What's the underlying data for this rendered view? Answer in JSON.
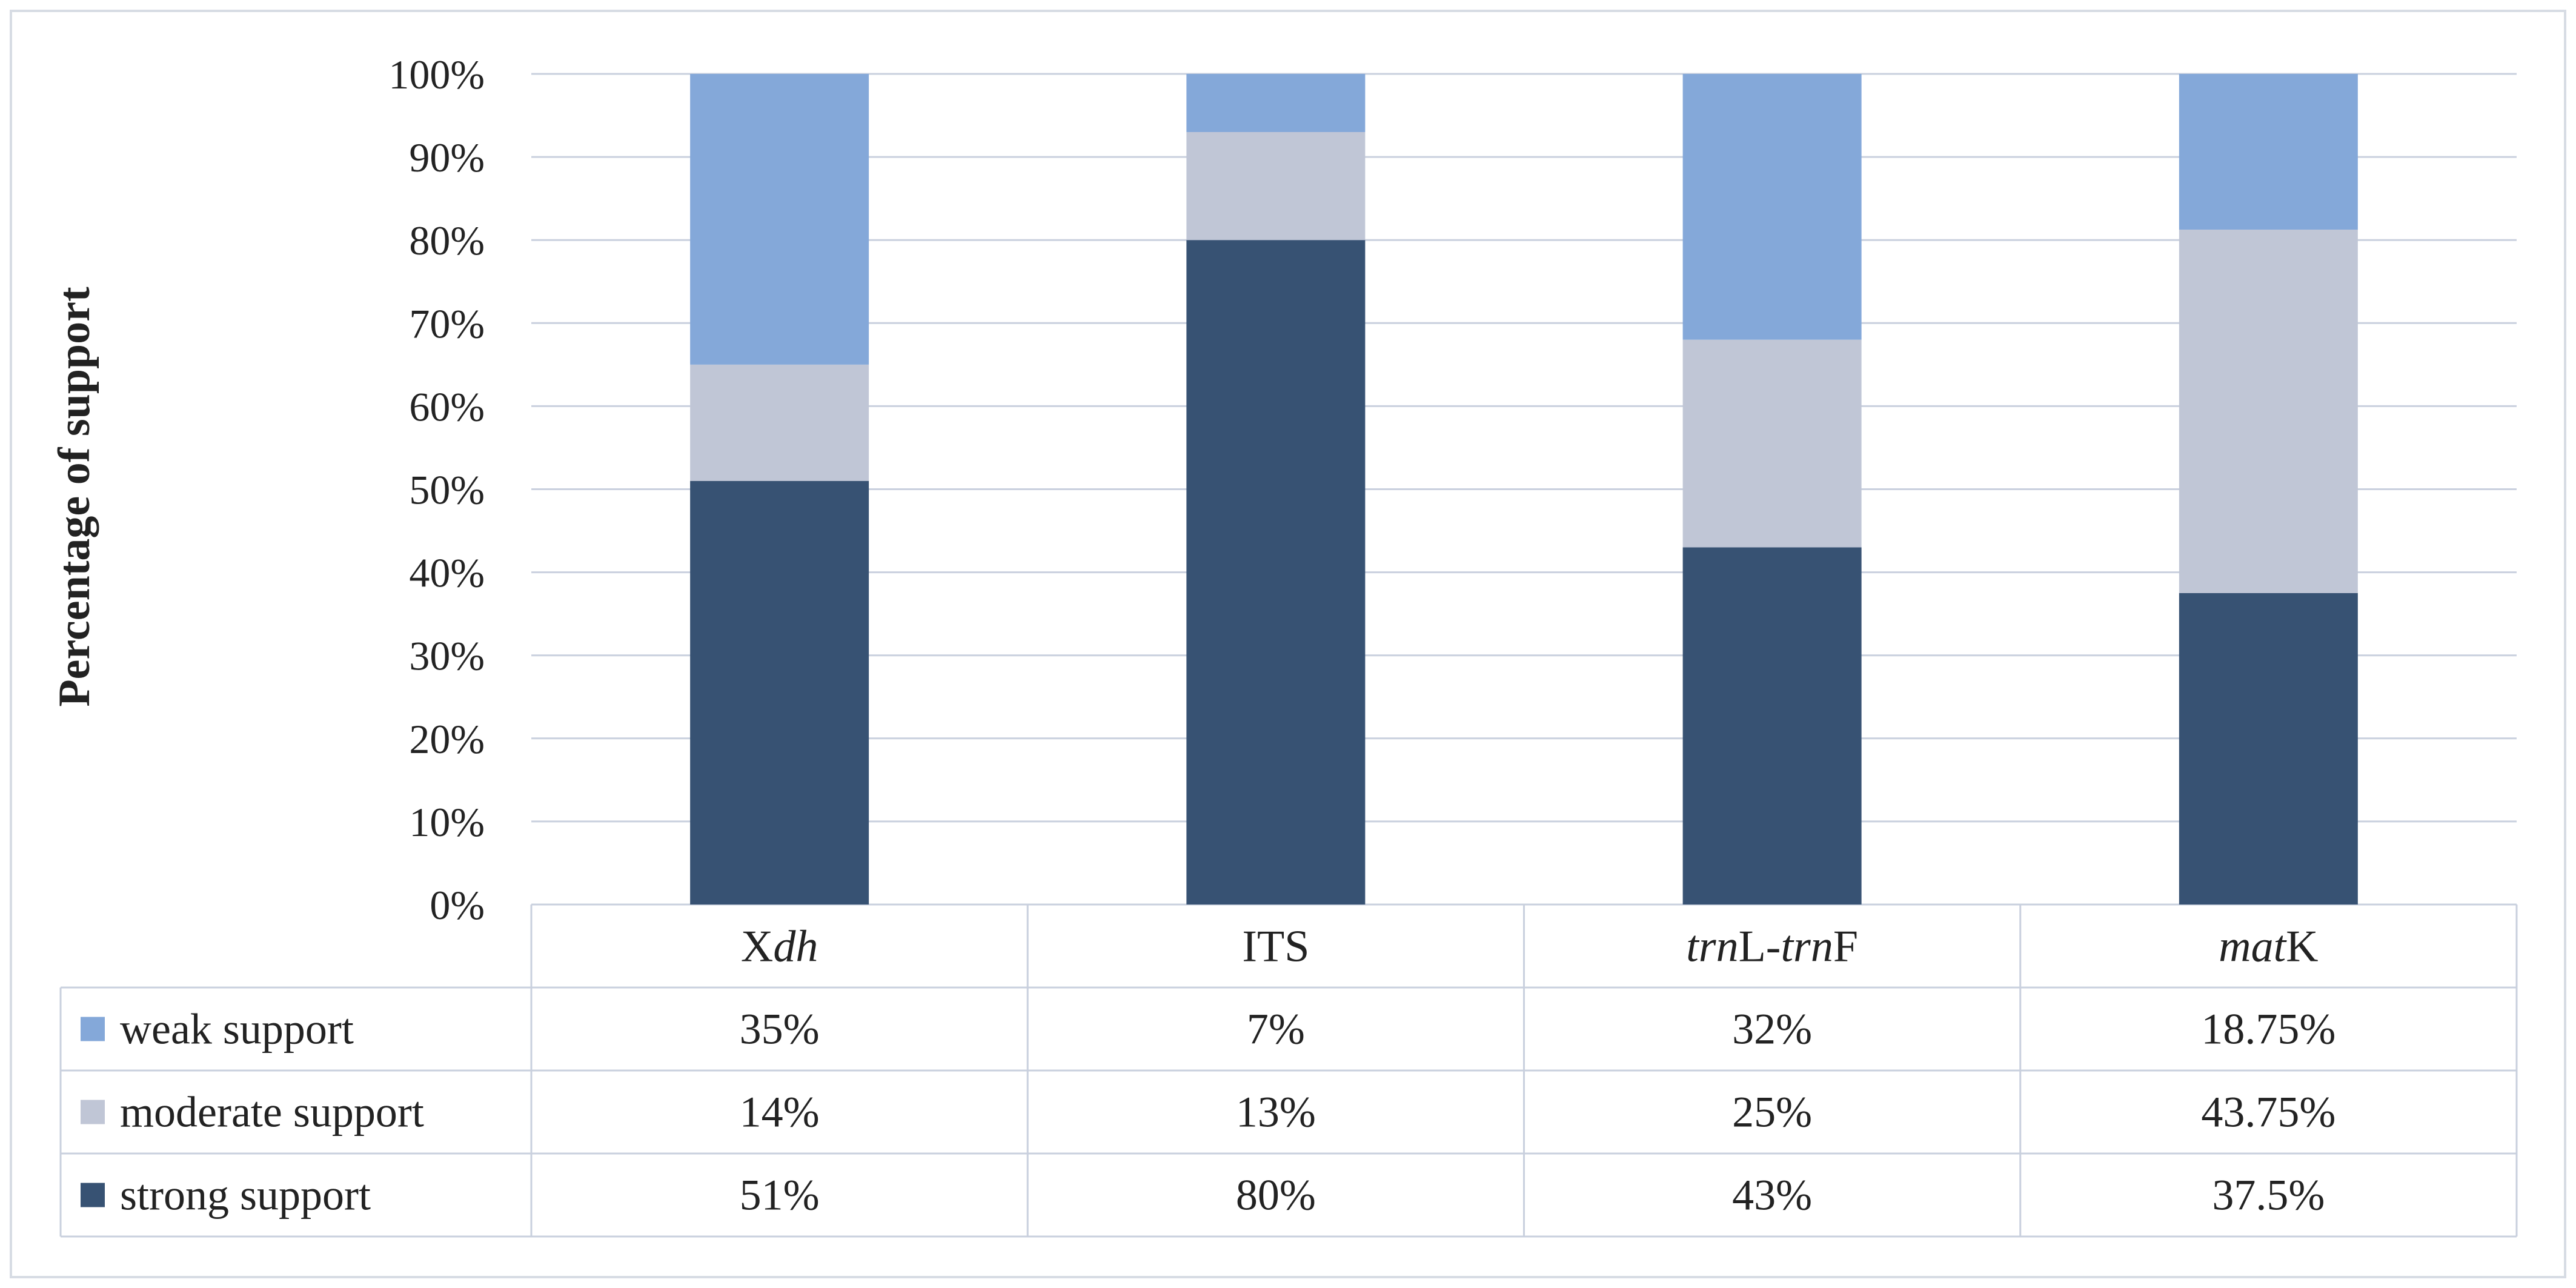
{
  "chart_data": {
    "type": "bar",
    "stacked": true,
    "ylabel": "Percentage of support",
    "xlabel": "",
    "ylim": [
      0,
      100
    ],
    "yticks": [
      "0%",
      "10%",
      "20%",
      "30%",
      "40%",
      "50%",
      "60%",
      "70%",
      "80%",
      "90%",
      "100%"
    ],
    "grid": true,
    "legend_placement": "data-table-left",
    "categories": [
      {
        "parts": [
          {
            "t": "X",
            "i": false
          },
          {
            "t": "dh",
            "i": true
          }
        ]
      },
      {
        "parts": [
          {
            "t": "ITS",
            "i": false
          }
        ]
      },
      {
        "parts": [
          {
            "t": "trn",
            "i": true
          },
          {
            "t": "L-",
            "i": false
          },
          {
            "t": "trn",
            "i": true
          },
          {
            "t": "F",
            "i": false
          }
        ]
      },
      {
        "parts": [
          {
            "t": "mat",
            "i": true
          },
          {
            "t": "K",
            "i": false
          }
        ]
      }
    ],
    "series": [
      {
        "name": "weak support",
        "color": "#84A8D9",
        "values": [
          35,
          7,
          32,
          18.75
        ],
        "labels": [
          "35%",
          "7%",
          "32%",
          "18.75%"
        ]
      },
      {
        "name": "moderate support",
        "color": "#C0C6D6",
        "values": [
          14,
          13,
          25,
          43.75
        ],
        "labels": [
          "14%",
          "13%",
          "25%",
          "43.75%"
        ]
      },
      {
        "name": "strong support",
        "color": "#375273",
        "values": [
          51,
          80,
          43,
          37.5
        ],
        "labels": [
          "51%",
          "80%",
          "43%",
          "37.5%"
        ]
      }
    ],
    "stack_order_bottom_to_top": [
      "strong support",
      "moderate support",
      "weak support"
    ]
  }
}
